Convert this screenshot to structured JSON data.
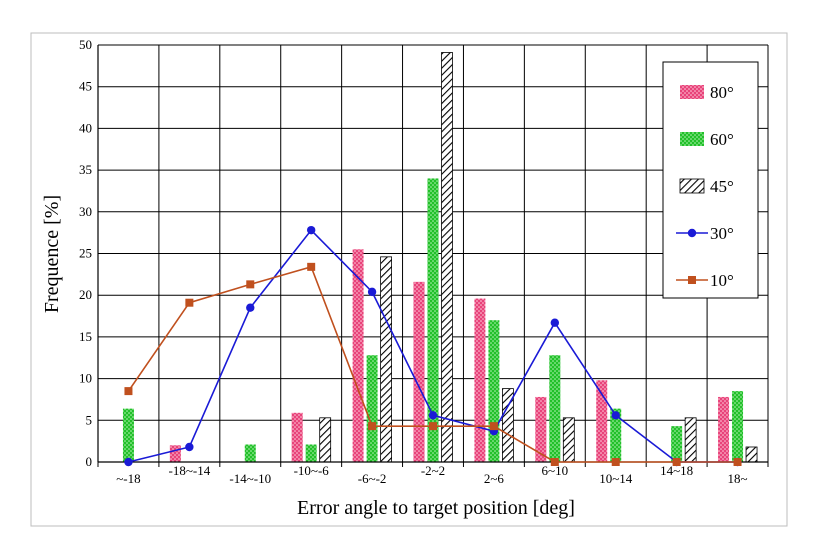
{
  "chart_data": {
    "type": "bar",
    "xlabel": "Error angle to target position [deg]",
    "ylabel": "Frequence [%]",
    "ylim": [
      0,
      50
    ],
    "yticks": [
      0,
      5,
      10,
      15,
      20,
      25,
      30,
      35,
      40,
      45,
      50
    ],
    "grid": true,
    "legend_position": "top-right",
    "categories": [
      "~-18",
      "-18~-14",
      "-14~-10",
      "-10~-6",
      "-6~-2",
      "-2~2",
      "2~6",
      "6~10",
      "10~14",
      "14~18",
      "18~"
    ],
    "series": [
      {
        "name": "80°",
        "kind": "bar",
        "pattern": "pink-dots",
        "color": "#e8437a",
        "values": [
          0,
          2.0,
          0,
          5.9,
          25.5,
          21.6,
          19.6,
          7.8,
          9.8,
          0,
          7.8
        ]
      },
      {
        "name": "60°",
        "kind": "bar",
        "pattern": "green-dots",
        "color": "#22c02a",
        "values": [
          6.4,
          0,
          2.1,
          2.1,
          12.8,
          34.0,
          17.0,
          12.8,
          6.4,
          4.3,
          8.5
        ]
      },
      {
        "name": "45°",
        "kind": "bar",
        "pattern": "diagonal-hatch",
        "color": "#000000",
        "values": [
          0,
          0,
          0,
          5.3,
          24.6,
          49.1,
          8.8,
          5.3,
          0,
          5.3,
          1.8
        ]
      },
      {
        "name": "30°",
        "kind": "line",
        "marker": "circle",
        "color": "#1a1ad6",
        "values": [
          0,
          1.8,
          18.5,
          27.8,
          20.4,
          5.6,
          3.7,
          16.7,
          5.6,
          0,
          0
        ]
      },
      {
        "name": "10°",
        "kind": "line",
        "marker": "square",
        "color": "#c0501e",
        "values": [
          8.5,
          19.1,
          21.3,
          23.4,
          4.3,
          4.3,
          4.3,
          0,
          0,
          0,
          0
        ]
      }
    ]
  }
}
